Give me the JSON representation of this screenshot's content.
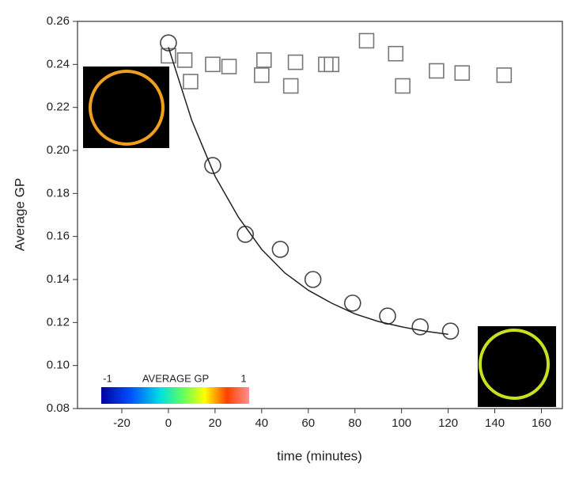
{
  "chart_data": {
    "type": "scatter",
    "xlabel": "time (minutes)",
    "ylabel": "Average GP",
    "xlim": [
      -39,
      169
    ],
    "ylim": [
      0.08,
      0.26
    ],
    "xticks": [
      -20,
      0,
      20,
      40,
      60,
      80,
      100,
      120,
      140,
      160
    ],
    "yticks": [
      0.08,
      {
        "value": 0.1,
        "label": "0.10"
      },
      0.12,
      0.14,
      0.16,
      0.18,
      {
        "value": 0.2,
        "label": "0.20"
      },
      0.22,
      0.24,
      0.26
    ],
    "series": [
      {
        "marker": "square",
        "color": "#777777",
        "x": [
          0,
          7,
          9.5,
          19,
          26,
          40,
          41,
          52.5,
          54.5,
          67.5,
          70,
          85,
          97.5,
          100.5,
          115,
          126,
          144
        ],
        "values": [
          0.244,
          0.242,
          0.232,
          0.24,
          0.239,
          0.235,
          0.242,
          0.23,
          0.241,
          0.24,
          0.24,
          0.251,
          0.245,
          0.23,
          0.237,
          0.236,
          0.235
        ]
      },
      {
        "marker": "circle",
        "color": "#444444",
        "x": [
          0,
          19,
          33,
          48,
          62,
          79,
          94,
          108,
          121
        ],
        "values": [
          0.25,
          0.193,
          0.161,
          0.154,
          0.14,
          0.129,
          0.123,
          0.118,
          0.116
        ]
      },
      {
        "marker": "line",
        "color": "#222222",
        "x": [
          0,
          10,
          20,
          30,
          40,
          50,
          60,
          70,
          80,
          90,
          100,
          110,
          120
        ],
        "values": [
          0.248,
          0.214,
          0.188,
          0.169,
          0.154,
          0.143,
          0.135,
          0.129,
          0.124,
          0.1205,
          0.118,
          0.116,
          0.1145
        ]
      }
    ],
    "colorbar": {
      "min_label": "-1",
      "title": "AVERAGE GP",
      "max_label": "1"
    }
  }
}
